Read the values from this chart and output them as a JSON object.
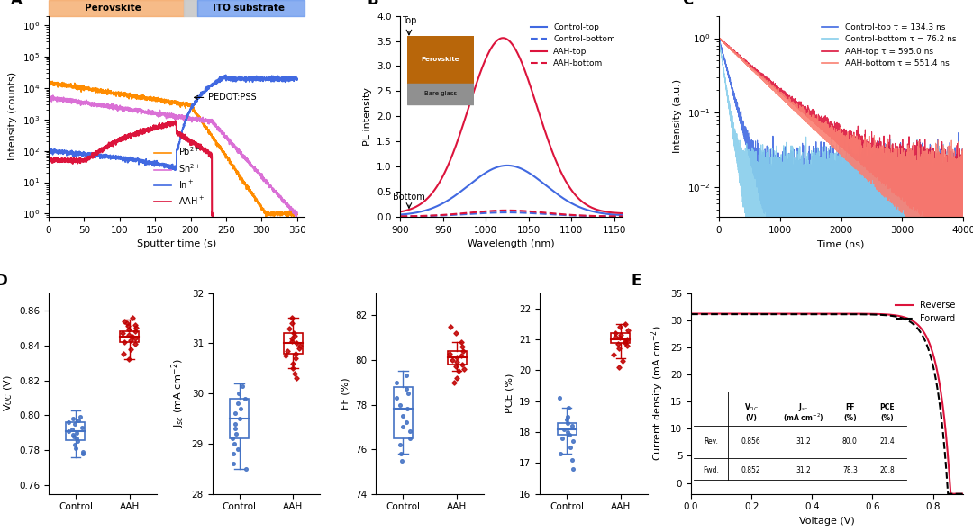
{
  "panel_A": {
    "xlabel": "Sputter time (s)",
    "ylabel": "Intensity (counts)",
    "xlim": [
      0,
      360
    ],
    "perovskite_label": "Perovskite",
    "ito_label": "ITO substrate",
    "pedot_label": "PEDOT:PSS",
    "perovskite_color": "#F4A460",
    "ito_color": "#6495ED",
    "series_colors": [
      "#FF8C00",
      "#DA70D6",
      "#4169E1",
      "#DC143C"
    ],
    "series_labels": [
      "Pb$^{2+}$",
      "Sn$^{2+}$",
      "In$^+$",
      "AAH$^+$"
    ]
  },
  "panel_B": {
    "xlabel": "Wavelength (nm)",
    "ylabel": "PL intensity",
    "xlim": [
      900,
      1160
    ],
    "series_labels": [
      "Control-top",
      "Control-bottom",
      "AAH-top",
      "AAH-bottom"
    ],
    "series_colors": [
      "#4169E1",
      "#4169E1",
      "#DC143C",
      "#DC143C"
    ],
    "series_styles": [
      "solid",
      "dashed",
      "solid",
      "dashed"
    ],
    "perovskite_color": "#B8660A",
    "glass_color": "#909090",
    "text_top": "Top",
    "text_perovskite": "Perovskite",
    "text_glass": "Bare glass",
    "text_bottom": "Bottom"
  },
  "panel_C": {
    "xlabel": "Time (ns)",
    "ylabel": "Intensity (a.u.)",
    "xlim": [
      0,
      4000
    ],
    "ylim": [
      0.004,
      2
    ],
    "legend": [
      {
        "label": "Control-top τ = 134.3 ns",
        "color": "#4169E1",
        "tau": 134.3
      },
      {
        "label": "Control-bottom τ = 76.2 ns",
        "color": "#87CEEB",
        "tau": 76.2
      },
      {
        "label": "AAH-top τ = 595.0 ns",
        "color": "#DC143C",
        "tau": 595.0
      },
      {
        "label": "AAH-bottom τ = 551.4 ns",
        "color": "#FA8072",
        "tau": 551.4
      }
    ]
  },
  "panel_D": {
    "subplots": [
      {
        "ylabel": "V$_{OC}$ (V)",
        "ylim": [
          0.755,
          0.87
        ],
        "yticks": [
          0.76,
          0.78,
          0.8,
          0.82,
          0.84,
          0.86
        ],
        "control_box": {
          "q1": 0.786,
          "median": 0.791,
          "q3": 0.796,
          "whisker_low": 0.776,
          "whisker_high": 0.803
        },
        "aah_box": {
          "q1": 0.842,
          "median": 0.845,
          "q3": 0.848,
          "whisker_low": 0.832,
          "whisker_high": 0.855
        },
        "control_pts": [
          0.799,
          0.798,
          0.797,
          0.796,
          0.795,
          0.793,
          0.792,
          0.791,
          0.79,
          0.789,
          0.788,
          0.787,
          0.785,
          0.783,
          0.781,
          0.779,
          0.778
        ],
        "aah_pts": [
          0.856,
          0.854,
          0.853,
          0.852,
          0.851,
          0.85,
          0.849,
          0.848,
          0.847,
          0.846,
          0.845,
          0.844,
          0.843,
          0.842,
          0.841,
          0.838,
          0.835,
          0.832
        ]
      },
      {
        "ylabel": "J$_{sc}$ (mA cm$^{-2}$)",
        "ylim": [
          28,
          32
        ],
        "yticks": [
          28,
          29,
          30,
          31,
          32
        ],
        "control_box": {
          "q1": 29.1,
          "median": 29.5,
          "q3": 29.9,
          "whisker_low": 28.5,
          "whisker_high": 30.2
        },
        "aah_box": {
          "q1": 30.8,
          "median": 31.0,
          "q3": 31.2,
          "whisker_low": 30.5,
          "whisker_high": 31.5
        },
        "control_pts": [
          30.15,
          30.0,
          29.9,
          29.8,
          29.7,
          29.6,
          29.5,
          29.4,
          29.3,
          29.2,
          29.1,
          29.0,
          28.9,
          28.8,
          28.6,
          28.5
        ],
        "aah_pts": [
          31.5,
          31.4,
          31.3,
          31.2,
          31.15,
          31.1,
          31.05,
          31.0,
          30.95,
          30.9,
          30.85,
          30.8,
          30.75,
          30.7,
          30.6,
          30.5,
          30.4,
          30.3
        ]
      },
      {
        "ylabel": "FF (%)",
        "ylim": [
          74,
          83
        ],
        "yticks": [
          74,
          76,
          78,
          80,
          82
        ],
        "control_box": {
          "q1": 76.5,
          "median": 77.8,
          "q3": 78.8,
          "whisker_low": 75.8,
          "whisker_high": 79.5
        },
        "aah_box": {
          "q1": 79.8,
          "median": 80.1,
          "q3": 80.4,
          "whisker_low": 79.5,
          "whisker_high": 80.8
        },
        "control_pts": [
          79.3,
          79.0,
          78.7,
          78.5,
          78.3,
          78.0,
          77.8,
          77.5,
          77.2,
          77.0,
          76.8,
          76.5,
          76.2,
          75.8,
          75.5
        ],
        "aah_pts": [
          81.5,
          81.2,
          80.8,
          80.6,
          80.4,
          80.3,
          80.2,
          80.1,
          80.0,
          79.9,
          79.8,
          79.7,
          79.6,
          79.5,
          79.2,
          79.0
        ]
      },
      {
        "ylabel": "PCE (%)",
        "ylim": [
          16,
          22.5
        ],
        "yticks": [
          16,
          17,
          18,
          19,
          20,
          21,
          22
        ],
        "control_box": {
          "q1": 17.9,
          "median": 18.1,
          "q3": 18.3,
          "whisker_low": 17.3,
          "whisker_high": 18.8
        },
        "aah_box": {
          "q1": 20.9,
          "median": 21.0,
          "q3": 21.2,
          "whisker_low": 20.4,
          "whisker_high": 21.5
        },
        "control_pts": [
          19.1,
          18.8,
          18.5,
          18.4,
          18.3,
          18.2,
          18.1,
          18.0,
          17.9,
          17.8,
          17.7,
          17.5,
          17.3,
          17.1,
          16.8
        ],
        "aah_pts": [
          21.5,
          21.4,
          21.3,
          21.2,
          21.15,
          21.1,
          21.05,
          21.0,
          20.95,
          20.9,
          20.85,
          20.8,
          20.7,
          20.5,
          20.3,
          20.1
        ]
      }
    ]
  },
  "panel_E": {
    "xlabel": "Voltage (V)",
    "ylabel": "Current density (mA cm$^{-2}$)",
    "xlim": [
      0.0,
      0.9
    ],
    "ylim": [
      -2,
      35
    ],
    "xticks": [
      0.0,
      0.2,
      0.4,
      0.6,
      0.8
    ],
    "rev_color": "#DC143C",
    "fwd_color": "#000000",
    "rev_label": "Reverse",
    "fwd_label": "Forward",
    "table_headers": [
      "V$_{OC}$",
      "J$_{sc}$",
      "FF",
      "PCE"
    ],
    "table_header2": [
      "(V)",
      "(mA cm$^{-2}$)",
      "(%)",
      "(%)"
    ],
    "table_row1": [
      "Rev.",
      "0.856",
      "31.2",
      "80.0",
      "21.4"
    ],
    "table_row2": [
      "Fwd.",
      "0.852",
      "31.2",
      "78.3",
      "20.8"
    ]
  },
  "colors": {
    "blue_dark": "#4169E1",
    "blue_light": "#87CEEB",
    "red_dark": "#DC143C",
    "red_light": "#FA8072",
    "control_box": "#4472C4",
    "aah_box": "#C00000"
  }
}
